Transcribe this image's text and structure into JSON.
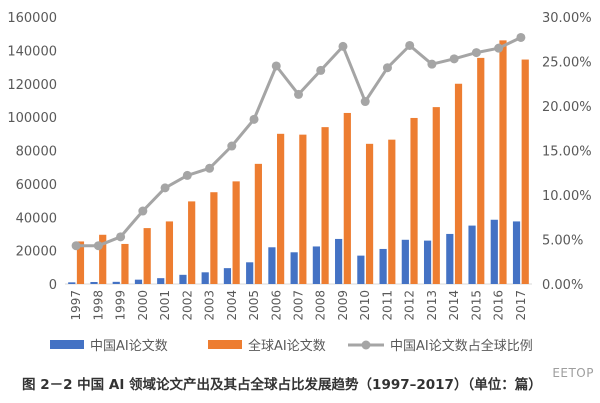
{
  "caption": "图 2－2  中国 AI 领域论文产出及其占全球占比发展趋势（1997–2017）（单位：篇）",
  "watermark": "EETOP",
  "colors": {
    "china": "#4472C4",
    "global": "#ED7D31",
    "ratio": "#A5A5A5",
    "axis_text": "#595959",
    "axis_line": "#D9D9D9"
  },
  "chart_data": {
    "type": "bar",
    "categories": [
      "1997",
      "1998",
      "1999",
      "2000",
      "2001",
      "2002",
      "2003",
      "2004",
      "2005",
      "2006",
      "2007",
      "2008",
      "2009",
      "2010",
      "2011",
      "2012",
      "2013",
      "2014",
      "2015",
      "2016",
      "2017"
    ],
    "left_axis": {
      "ylim": [
        0,
        160000
      ],
      "ticks": [
        "0",
        "20000",
        "40000",
        "60000",
        "80000",
        "100000",
        "120000",
        "140000",
        "160000"
      ]
    },
    "right_axis": {
      "ylim": [
        0,
        30
      ],
      "ticks": [
        "0.00%",
        "5.00%",
        "10.00%",
        "15.00%",
        "20.00%",
        "25.00%",
        "30.00%"
      ]
    },
    "grid": false,
    "legend_position": "bottom",
    "series": [
      {
        "name": "中国AI论文数",
        "type": "bar",
        "axis": "left",
        "values": [
          1000,
          1200,
          1300,
          2600,
          3500,
          5500,
          7000,
          9500,
          13000,
          22000,
          19000,
          22500,
          27000,
          17000,
          21000,
          26500,
          26000,
          30000,
          35000,
          38500,
          37500
        ]
      },
      {
        "name": "全球AI论文数",
        "type": "bar",
        "axis": "left",
        "values": [
          25500,
          29500,
          24000,
          33500,
          37500,
          49500,
          55000,
          61500,
          72000,
          90000,
          89500,
          94000,
          102500,
          84000,
          86500,
          99500,
          106000,
          120000,
          135500,
          146000,
          134500
        ]
      },
      {
        "name": "中国AI论文数占全球比例",
        "type": "line",
        "axis": "right",
        "values": [
          4.3,
          4.3,
          5.3,
          8.2,
          10.8,
          12.2,
          13.0,
          15.5,
          18.5,
          24.5,
          21.3,
          24.0,
          26.7,
          20.5,
          24.3,
          26.8,
          24.7,
          25.3,
          26.0,
          26.5,
          27.7
        ]
      }
    ]
  }
}
